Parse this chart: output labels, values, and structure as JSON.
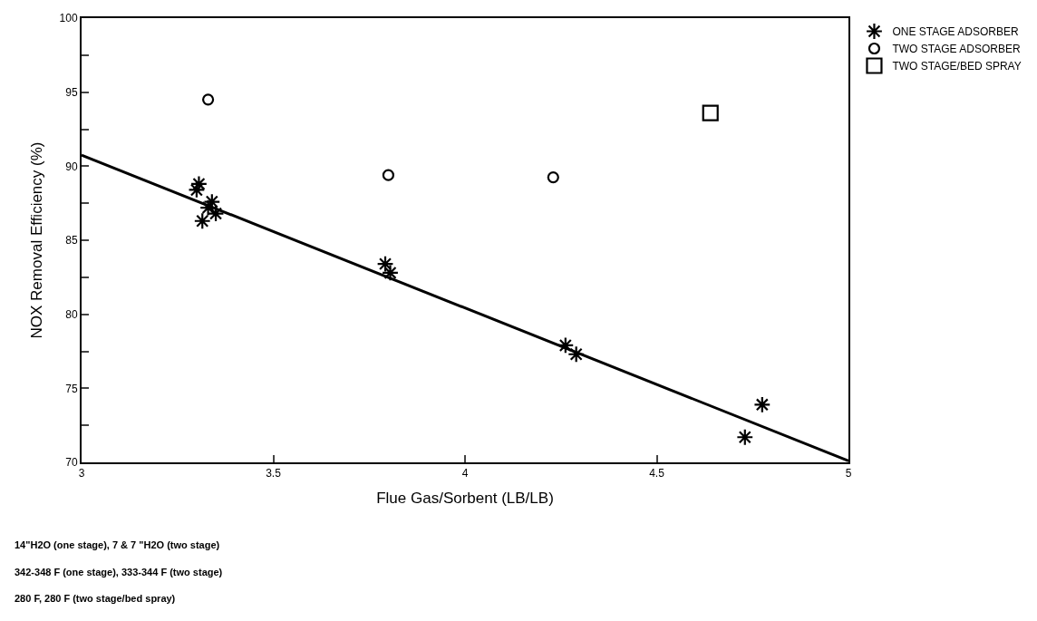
{
  "chart_data": {
    "type": "scatter",
    "xlabel": "Flue Gas/Sorbent (LB/LB)",
    "ylabel": "NOX Removal Efficiency (%)",
    "series": [
      {
        "name": "ONE STAGE ADSORBER",
        "marker": "cross",
        "color": "#000000",
        "x": [
          3.306,
          3.3,
          3.34,
          3.33,
          3.315,
          3.35,
          3.792,
          3.805,
          4.262,
          4.29,
          4.775,
          4.73
        ],
        "values": [
          88.8,
          88.4,
          87.6,
          87.2,
          86.3,
          86.8,
          83.4,
          82.8,
          77.9,
          77.3,
          73.9,
          71.7
        ]
      },
      {
        "type": "line",
        "color": "#000000",
        "x": [
          3,
          5
        ],
        "values": [
          90.75,
          70.1
        ]
      },
      {
        "name": "TWO STAGE ADSORBER",
        "marker": "circle",
        "color": "#000000",
        "x": [
          3.33,
          3.8,
          4.23
        ],
        "values": [
          94.5,
          89.4,
          89.25
        ]
      },
      {
        "name": "TWO STAGE/BED SPRAY",
        "marker": "square",
        "color": "#000000",
        "x": [
          4.64
        ],
        "values": [
          93.6
        ]
      }
    ],
    "xlim": [
      3,
      5
    ],
    "xticks": [
      3,
      3.5,
      4,
      4.5,
      5
    ],
    "ylim": [
      70,
      100
    ],
    "yticks": [
      70,
      {
        "value": 72.5,
        "label": null
      },
      75,
      {
        "value": 77.5,
        "label": null
      },
      80,
      {
        "value": 82.5,
        "label": null
      },
      85,
      {
        "value": 87.5,
        "label": null
      },
      90,
      {
        "value": 92.5,
        "label": null
      },
      95,
      {
        "value": 97.5,
        "label": null
      },
      100
    ],
    "legend": "top right",
    "annotations": [
      "14\"H2O (one stage), 7 & 7 \"H2O (two stage)",
      "342-348 F (one stage), 333-344 F (two stage)",
      "280 F, 280 F (two stage/bed spray)"
    ]
  }
}
